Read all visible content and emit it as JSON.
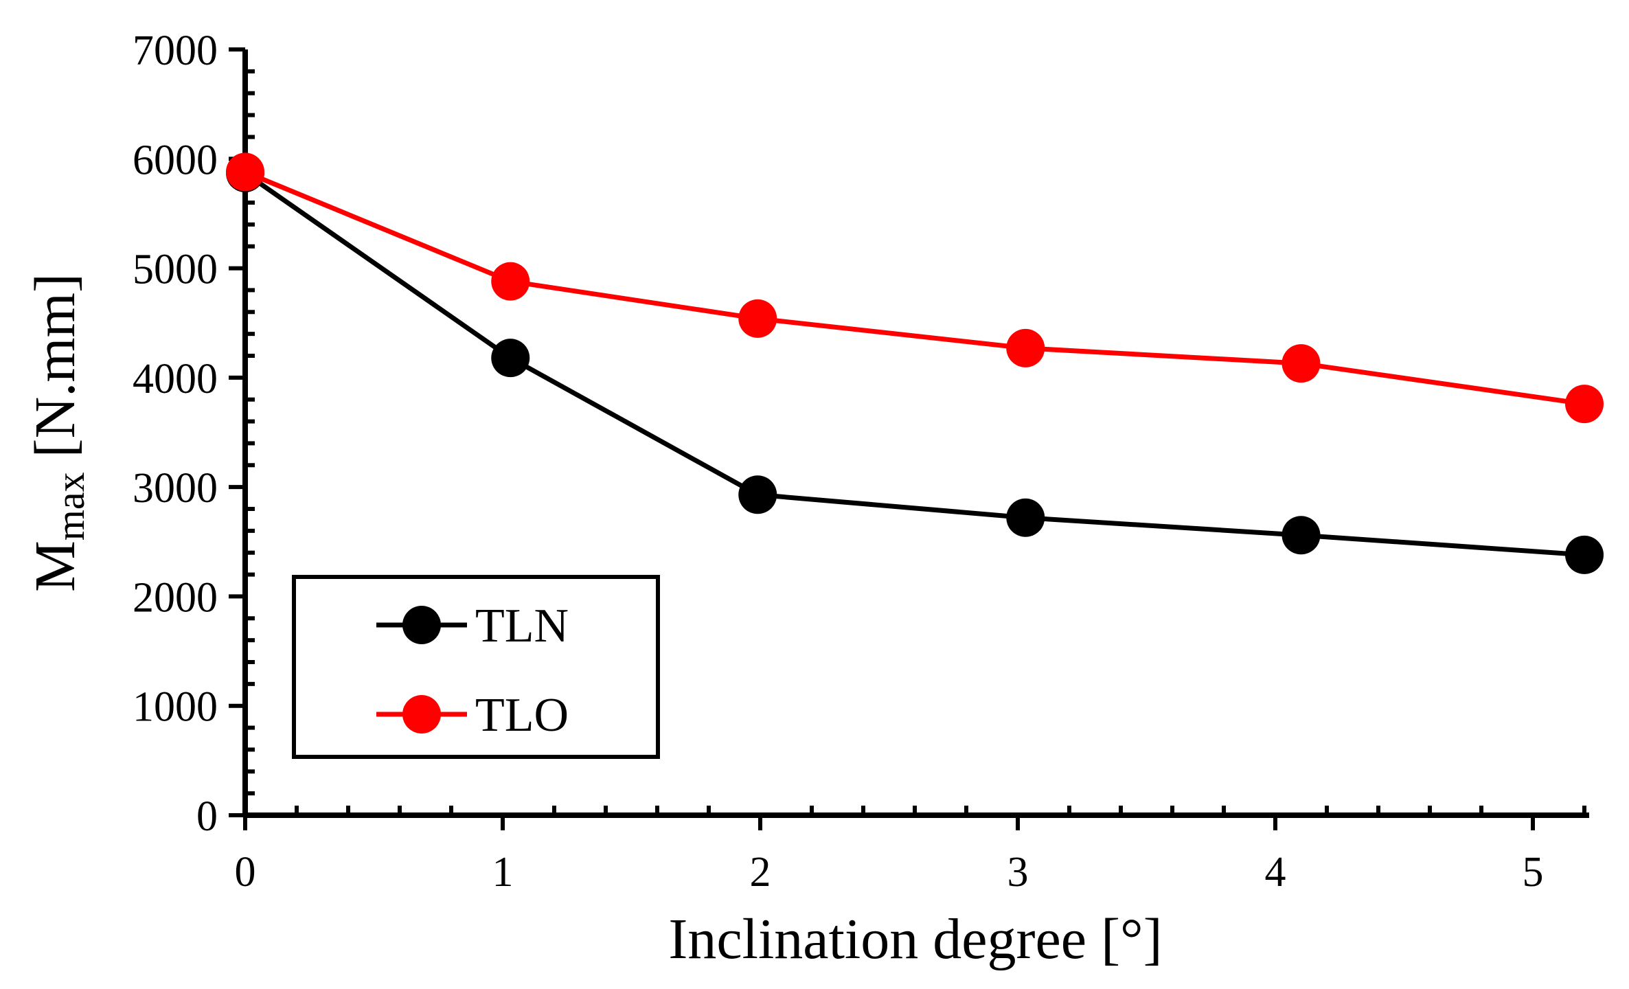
{
  "chart_data": {
    "type": "line",
    "title": "",
    "xlabel": "Inclination degree [°]",
    "ylabel_main": "M",
    "ylabel_sub": "max",
    "ylabel_unit": " [N.mm]",
    "xlim": [
      0,
      5.25
    ],
    "ylim": [
      0,
      7000
    ],
    "x_ticks": [
      0,
      1,
      2,
      3,
      4,
      5
    ],
    "x_tick_labels": [
      "0",
      "1",
      "2",
      "3",
      "4",
      "5"
    ],
    "y_ticks": [
      0,
      1000,
      2000,
      3000,
      4000,
      5000,
      6000,
      7000
    ],
    "y_tick_labels": [
      "0",
      "1000",
      "2000",
      "3000",
      "4000",
      "5000",
      "6000",
      "7000"
    ],
    "grid": false,
    "legend_position": "bottom-left",
    "series": [
      {
        "name": "TLN",
        "color": "#000000",
        "x": [
          0,
          1.03,
          1.99,
          3.03,
          4.1,
          5.2
        ],
        "y": [
          5870,
          4180,
          2930,
          2720,
          2560,
          2380
        ]
      },
      {
        "name": "TLO",
        "color": "#ff0000",
        "x": [
          0,
          1.03,
          1.99,
          3.03,
          4.1,
          5.2
        ],
        "y": [
          5880,
          4880,
          4540,
          4270,
          4130,
          3760
        ]
      }
    ]
  }
}
